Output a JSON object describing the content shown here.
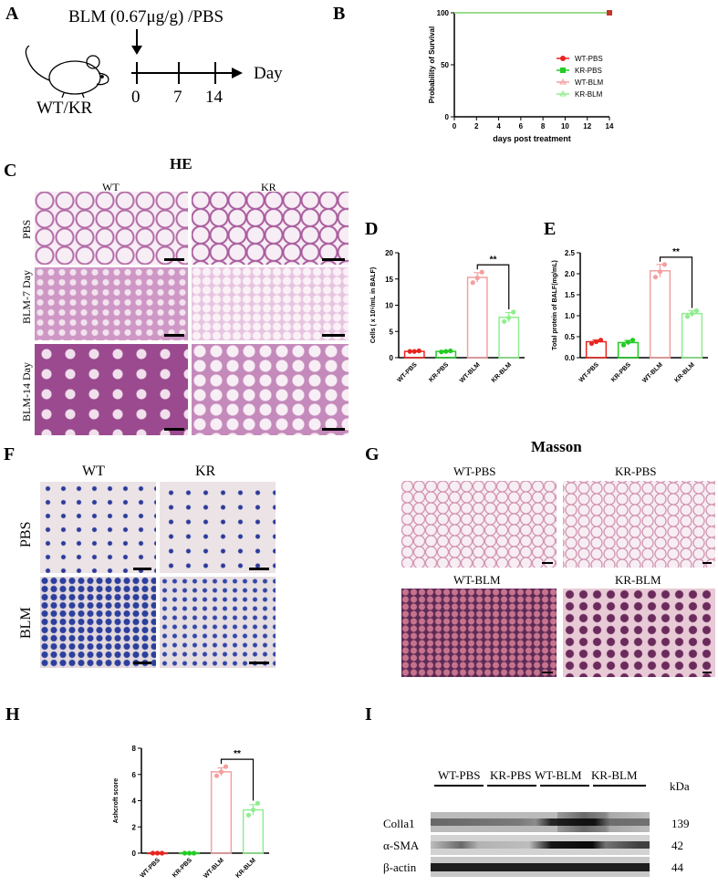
{
  "panel_labels": {
    "A": "A",
    "B": "B",
    "C": "C",
    "D": "D",
    "E": "E",
    "F": "F",
    "G": "G",
    "H": "H",
    "I": "I"
  },
  "panelA": {
    "treatment": "BLM (0.67μg/g) /PBS",
    "mouse_label": "WT/KR",
    "ticks": [
      "0",
      "7",
      "14"
    ],
    "axis_label": "Day"
  },
  "panelC": {
    "title": "HE",
    "cols": [
      "WT",
      "KR"
    ],
    "rows": [
      "PBS",
      "BLM-7 Day",
      "BLM-14 Day"
    ]
  },
  "panelF": {
    "cols": [
      "WT",
      "KR"
    ],
    "rows": [
      "PBS",
      "BLM"
    ]
  },
  "panelG": {
    "title": "Masson",
    "labels": [
      "WT-PBS",
      "KR-PBS",
      "WT-BLM",
      "KR-BLM"
    ]
  },
  "panelI": {
    "groups": [
      "WT-PBS",
      "KR-PBS",
      "WT-BLM",
      "KR-BLM"
    ],
    "kda_header": "kDa",
    "rows": [
      {
        "name": "Colla1",
        "kda": "139"
      },
      {
        "name": "α-SMA",
        "kda": "42"
      },
      {
        "name": "β-actin",
        "kda": "44"
      }
    ]
  },
  "colors": {
    "wt_pbs": "#e8241f",
    "kr_pbs": "#22cc22",
    "wt_blm": "#f4a0a0",
    "kr_blm": "#90ee90"
  },
  "chart_data": [
    {
      "id": "B",
      "type": "line",
      "xlabel": "days post treatment",
      "ylabel": "Probability of Survival",
      "xlim": [
        0,
        14
      ],
      "ylim": [
        0,
        100
      ],
      "xticks": [
        "0",
        "2",
        "4",
        "6",
        "8",
        "10",
        "12",
        "14"
      ],
      "yticks": [
        "0",
        "50",
        "100"
      ],
      "series": [
        {
          "name": "WT-PBS",
          "x": [
            0,
            14
          ],
          "values": [
            100,
            100
          ]
        },
        {
          "name": "KR-PBS",
          "x": [
            0,
            14
          ],
          "values": [
            100,
            100
          ]
        },
        {
          "name": "WT-BLM",
          "x": [
            0,
            14
          ],
          "values": [
            100,
            100
          ]
        },
        {
          "name": "KR-BLM",
          "x": [
            0,
            14
          ],
          "values": [
            100,
            100
          ]
        }
      ],
      "legend": "right"
    },
    {
      "id": "D",
      "type": "bar",
      "ylabel": "Cells ( x 10⁵/mL in BALF)",
      "ylim": [
        0,
        20
      ],
      "yticks": [
        "0",
        "5",
        "10",
        "15",
        "20"
      ],
      "categories": [
        "WT-PBS",
        "KR-PBS",
        "WT-BLM",
        "KR-BLM"
      ],
      "values": [
        1.2,
        1.2,
        15.3,
        7.7
      ],
      "errors": [
        0.1,
        0.1,
        0.9,
        0.9
      ],
      "points": [
        [
          1.2,
          1.2,
          1.3
        ],
        [
          1.1,
          1.2,
          1.3
        ],
        [
          14.3,
          15.2,
          16.3
        ],
        [
          6.9,
          7.6,
          8.7
        ]
      ],
      "significance": {
        "pair": [
          2,
          3
        ],
        "label": "**"
      }
    },
    {
      "id": "E",
      "type": "bar",
      "ylabel": "Total protein of BALF(mg/mL)",
      "ylim": [
        0,
        2.5
      ],
      "yticks": [
        "0.0",
        "0.5",
        "1.0",
        "1.5",
        "2.0",
        "2.5"
      ],
      "categories": [
        "WT-PBS",
        "KR-PBS",
        "WT-BLM",
        "KR-BLM"
      ],
      "values": [
        0.38,
        0.36,
        2.07,
        1.05
      ],
      "errors": [
        0.04,
        0.05,
        0.15,
        0.07
      ],
      "points": [
        [
          0.34,
          0.38,
          0.42
        ],
        [
          0.3,
          0.37,
          0.42
        ],
        [
          1.92,
          2.05,
          2.22
        ],
        [
          0.98,
          1.05,
          1.12
        ]
      ],
      "significance": {
        "pair": [
          2,
          3
        ],
        "label": "**"
      }
    },
    {
      "id": "H",
      "type": "bar",
      "ylabel": "Ashcroft score",
      "ylim": [
        0,
        8
      ],
      "yticks": [
        "0",
        "2",
        "4",
        "6",
        "8"
      ],
      "categories": [
        "WT-PBS",
        "KR-PBS",
        "WT-BLM",
        "KR-BLM"
      ],
      "values": [
        0,
        0,
        6.2,
        3.3
      ],
      "errors": [
        0,
        0,
        0.3,
        0.4
      ],
      "points": [
        [
          0,
          0,
          0
        ],
        [
          0,
          0,
          0
        ],
        [
          5.9,
          6.2,
          6.6
        ],
        [
          2.9,
          3.3,
          3.8
        ]
      ],
      "significance": {
        "pair": [
          2,
          3
        ],
        "label": "**"
      }
    }
  ]
}
